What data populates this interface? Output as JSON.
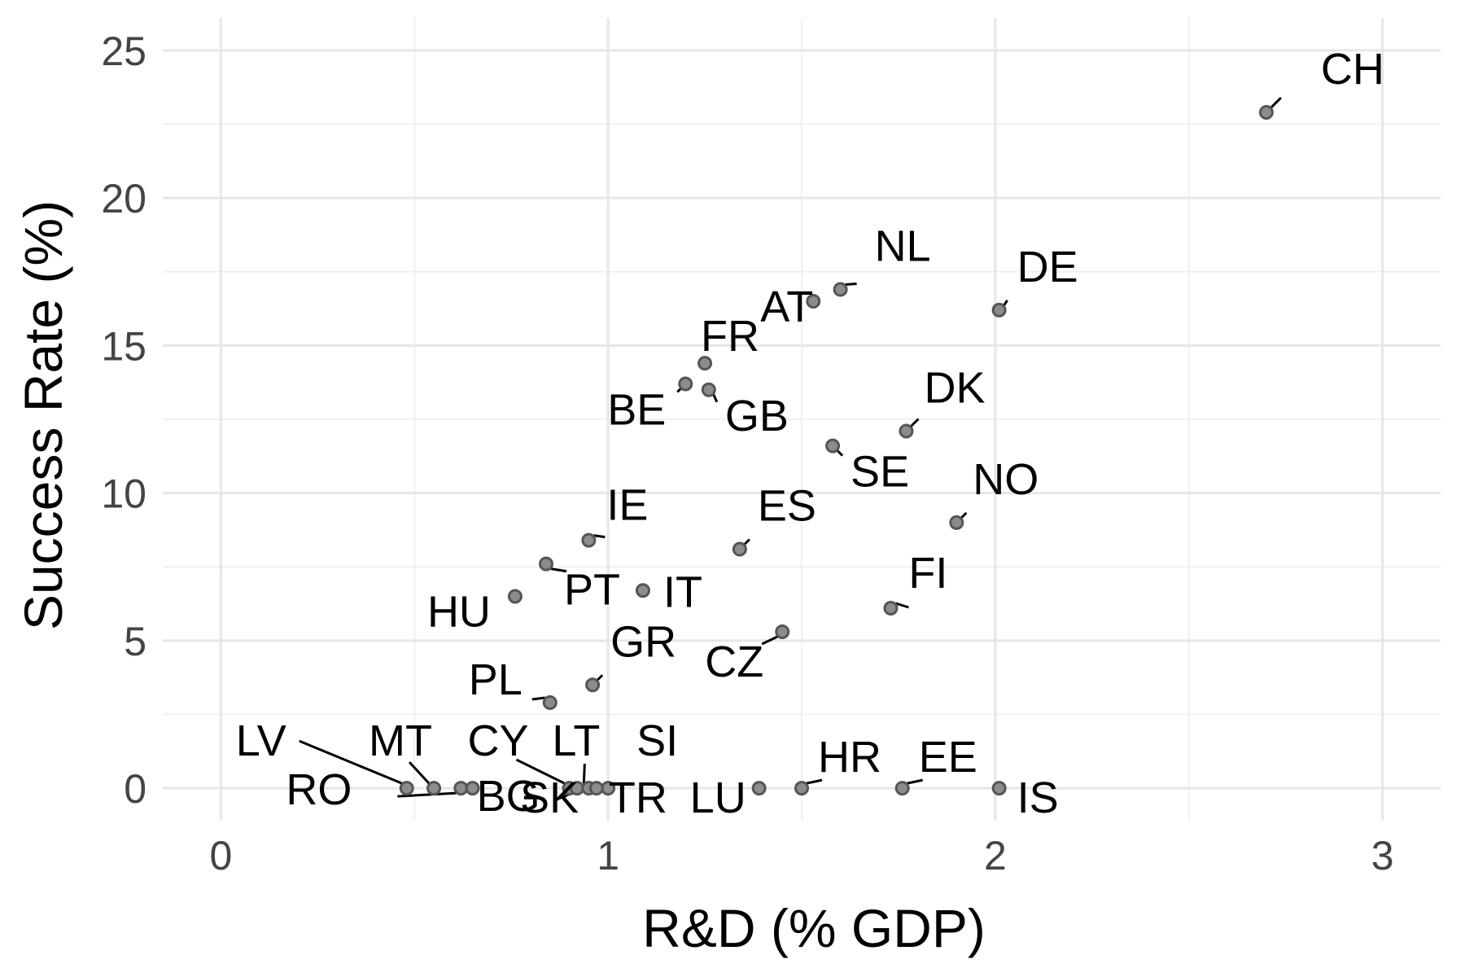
{
  "chart_data": {
    "type": "scatter",
    "title": "",
    "xlabel": "R&D (% GDP)",
    "ylabel": "Success Rate (%)",
    "xlim": [
      -0.15,
      3.15
    ],
    "ylim": [
      -1.1,
      26.1
    ],
    "x_ticks": [
      0,
      1,
      2,
      3
    ],
    "x_tick_labels": [
      "0",
      "1",
      "2",
      "3"
    ],
    "y_ticks": [
      0,
      5,
      10,
      15,
      20,
      25
    ],
    "y_tick_labels": [
      "0",
      "5",
      "10",
      "15",
      "20",
      "25"
    ],
    "grid": true,
    "legend": "none",
    "colors": {
      "point_fill": "#8c8c8c",
      "point_stroke": "#555555",
      "grid": "#e6e6e6",
      "label": "#000000",
      "tick": "#444444"
    },
    "points": [
      {
        "label": "CH",
        "x": 2.7,
        "y": 22.9
      },
      {
        "label": "NL",
        "x": 1.6,
        "y": 16.9
      },
      {
        "label": "DE",
        "x": 2.01,
        "y": 16.2
      },
      {
        "label": "AT",
        "x": 1.53,
        "y": 16.5
      },
      {
        "label": "FR",
        "x": 1.25,
        "y": 14.4
      },
      {
        "label": "BE",
        "x": 1.2,
        "y": 13.7
      },
      {
        "label": "GB",
        "x": 1.26,
        "y": 13.5
      },
      {
        "label": "DK",
        "x": 1.77,
        "y": 12.1
      },
      {
        "label": "SE",
        "x": 1.58,
        "y": 11.6
      },
      {
        "label": "NO",
        "x": 1.9,
        "y": 9.0
      },
      {
        "label": "IE",
        "x": 0.95,
        "y": 8.4
      },
      {
        "label": "ES",
        "x": 1.34,
        "y": 8.1
      },
      {
        "label": "PT",
        "x": 0.84,
        "y": 7.6
      },
      {
        "label": "IT",
        "x": 1.09,
        "y": 6.7
      },
      {
        "label": "HU",
        "x": 0.76,
        "y": 6.5
      },
      {
        "label": "FI",
        "x": 1.73,
        "y": 6.1
      },
      {
        "label": "CZ",
        "x": 1.45,
        "y": 5.3
      },
      {
        "label": "GR",
        "x": 0.96,
        "y": 3.5
      },
      {
        "label": "PL",
        "x": 0.85,
        "y": 2.9
      },
      {
        "label": "LV",
        "x": 0.48,
        "y": 0
      },
      {
        "label": "MT",
        "x": 0.55,
        "y": 0
      },
      {
        "label": "RO",
        "x": 0.62,
        "y": 0
      },
      {
        "label": "BG",
        "x": 0.65,
        "y": 0
      },
      {
        "label": "CY",
        "x": 0.9,
        "y": 0
      },
      {
        "label": "SK",
        "x": 0.92,
        "y": 0
      },
      {
        "label": "LT",
        "x": 0.95,
        "y": 0
      },
      {
        "label": "SI",
        "x": 1.0,
        "y": 0
      },
      {
        "label": "TR",
        "x": 0.97,
        "y": 0
      },
      {
        "label": "LU",
        "x": 1.39,
        "y": 0
      },
      {
        "label": "HR",
        "x": 1.5,
        "y": 0
      },
      {
        "label": "EE",
        "x": 1.76,
        "y": 0
      },
      {
        "label": "IS",
        "x": 2.01,
        "y": 0
      }
    ]
  }
}
